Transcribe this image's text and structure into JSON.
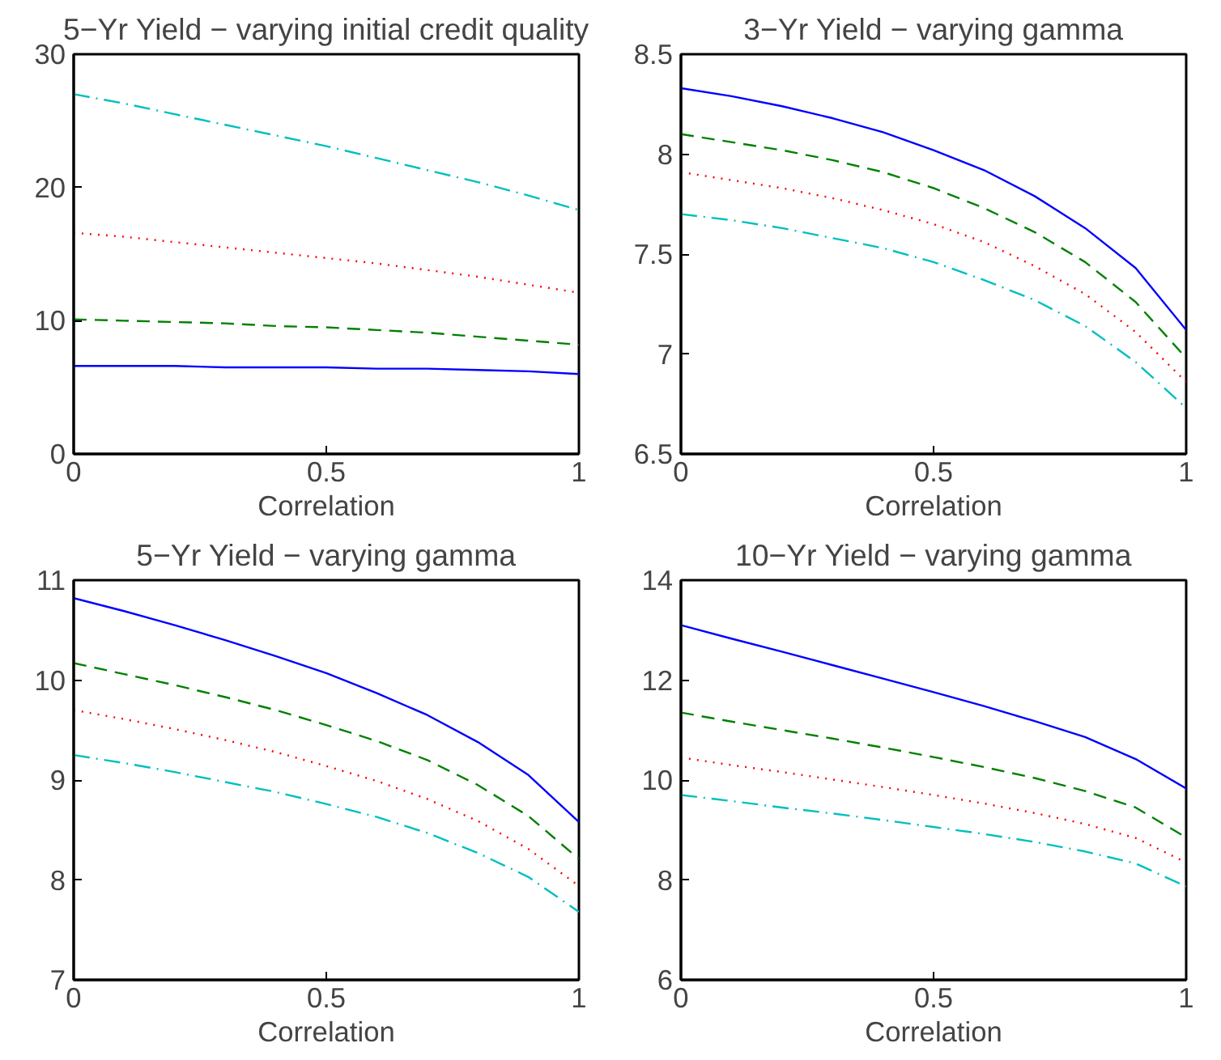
{
  "chart_data": [
    {
      "type": "line",
      "title": "5−Yr Yield − varying initial credit quality",
      "xlabel": "Correlation",
      "x": [
        0,
        0.1,
        0.2,
        0.3,
        0.4,
        0.5,
        0.6,
        0.7,
        0.8,
        0.9,
        1
      ],
      "xlim": [
        0,
        1
      ],
      "xticks": [
        0,
        0.5,
        1
      ],
      "ylim": [
        0,
        30
      ],
      "yticks": [
        0,
        10,
        20,
        30
      ],
      "grid": false,
      "series": [
        {
          "color": "#0000ff",
          "line_style": "solid",
          "values": [
            6.6,
            6.6,
            6.6,
            6.5,
            6.5,
            6.5,
            6.4,
            6.4,
            6.3,
            6.2,
            6.0
          ]
        },
        {
          "color": "#008000",
          "line_style": "dashed",
          "values": [
            10.1,
            10.0,
            9.9,
            9.8,
            9.6,
            9.5,
            9.3,
            9.1,
            8.8,
            8.5,
            8.2
          ]
        },
        {
          "color": "#ff0000",
          "line_style": "dotted",
          "values": [
            16.6,
            16.3,
            15.9,
            15.5,
            15.1,
            14.7,
            14.3,
            13.8,
            13.3,
            12.7,
            12.1
          ]
        },
        {
          "color": "#00bfbf",
          "line_style": "dashdot",
          "values": [
            27,
            26.3,
            25.5,
            24.7,
            23.9,
            23.1,
            22.2,
            21.3,
            20.4,
            19.4,
            18.3
          ]
        }
      ]
    },
    {
      "type": "line",
      "title": "3−Yr Yield − varying gamma",
      "xlabel": "Correlation",
      "x": [
        0,
        0.1,
        0.2,
        0.3,
        0.4,
        0.5,
        0.6,
        0.7,
        0.8,
        0.9,
        1
      ],
      "xlim": [
        0,
        1
      ],
      "xticks": [
        0,
        0.5,
        1
      ],
      "ylim": [
        6.5,
        8.5
      ],
      "yticks": [
        6.5,
        7,
        7.5,
        8,
        8.5
      ],
      "grid": false,
      "series": [
        {
          "color": "#0000ff",
          "line_style": "solid",
          "values": [
            8.33,
            8.29,
            8.24,
            8.18,
            8.11,
            8.02,
            7.92,
            7.79,
            7.63,
            7.43,
            7.12
          ]
        },
        {
          "color": "#008000",
          "line_style": "dashed",
          "values": [
            8.1,
            8.06,
            8.02,
            7.97,
            7.91,
            7.83,
            7.73,
            7.61,
            7.46,
            7.26,
            6.98
          ]
        },
        {
          "color": "#ff0000",
          "line_style": "dotted",
          "values": [
            7.91,
            7.87,
            7.83,
            7.78,
            7.72,
            7.65,
            7.56,
            7.44,
            7.3,
            7.11,
            6.86
          ]
        },
        {
          "color": "#00bfbf",
          "line_style": "dashdot",
          "values": [
            7.7,
            7.67,
            7.63,
            7.58,
            7.53,
            7.46,
            7.37,
            7.27,
            7.14,
            6.96,
            6.73
          ]
        }
      ]
    },
    {
      "type": "line",
      "title": "5−Yr Yield − varying gamma",
      "xlabel": "Correlation",
      "x": [
        0,
        0.1,
        0.2,
        0.3,
        0.4,
        0.5,
        0.6,
        0.7,
        0.8,
        0.9,
        1
      ],
      "xlim": [
        0,
        1
      ],
      "xticks": [
        0,
        0.5,
        1
      ],
      "ylim": [
        7,
        11
      ],
      "yticks": [
        7,
        8,
        9,
        10,
        11
      ],
      "grid": false,
      "series": [
        {
          "color": "#0000ff",
          "line_style": "solid",
          "values": [
            10.82,
            10.69,
            10.55,
            10.4,
            10.24,
            10.07,
            9.87,
            9.65,
            9.38,
            9.05,
            8.58
          ]
        },
        {
          "color": "#008000",
          "line_style": "dashed",
          "values": [
            10.17,
            10.06,
            9.95,
            9.83,
            9.7,
            9.55,
            9.39,
            9.2,
            8.95,
            8.64,
            8.21
          ]
        },
        {
          "color": "#ff0000",
          "line_style": "dotted",
          "values": [
            9.7,
            9.61,
            9.51,
            9.4,
            9.28,
            9.14,
            8.99,
            8.81,
            8.59,
            8.31,
            7.94
          ]
        },
        {
          "color": "#00bfbf",
          "line_style": "dashdot",
          "values": [
            9.25,
            9.17,
            9.08,
            8.98,
            8.88,
            8.76,
            8.63,
            8.47,
            8.27,
            8.03,
            7.68
          ]
        }
      ]
    },
    {
      "type": "line",
      "title": "10−Yr Yield − varying gamma",
      "xlabel": "Correlation",
      "x": [
        0,
        0.1,
        0.2,
        0.3,
        0.4,
        0.5,
        0.6,
        0.7,
        0.8,
        0.9,
        1
      ],
      "xlim": [
        0,
        1
      ],
      "xticks": [
        0,
        0.5,
        1
      ],
      "ylim": [
        6,
        14
      ],
      "yticks": [
        6,
        8,
        10,
        12,
        14
      ],
      "grid": false,
      "series": [
        {
          "color": "#0000ff",
          "line_style": "solid",
          "values": [
            13.1,
            12.83,
            12.57,
            12.3,
            12.03,
            11.76,
            11.48,
            11.18,
            10.86,
            10.42,
            9.83
          ]
        },
        {
          "color": "#008000",
          "line_style": "dashed",
          "values": [
            11.35,
            11.17,
            11.0,
            10.83,
            10.65,
            10.46,
            10.26,
            10.04,
            9.78,
            9.45,
            8.85
          ]
        },
        {
          "color": "#ff0000",
          "line_style": "dotted",
          "values": [
            10.45,
            10.3,
            10.16,
            10.01,
            9.86,
            9.7,
            9.53,
            9.34,
            9.12,
            8.84,
            8.35
          ]
        },
        {
          "color": "#00bfbf",
          "line_style": "dashdot",
          "values": [
            9.7,
            9.58,
            9.45,
            9.33,
            9.2,
            9.06,
            8.92,
            8.76,
            8.57,
            8.33,
            7.87
          ]
        }
      ]
    }
  ]
}
